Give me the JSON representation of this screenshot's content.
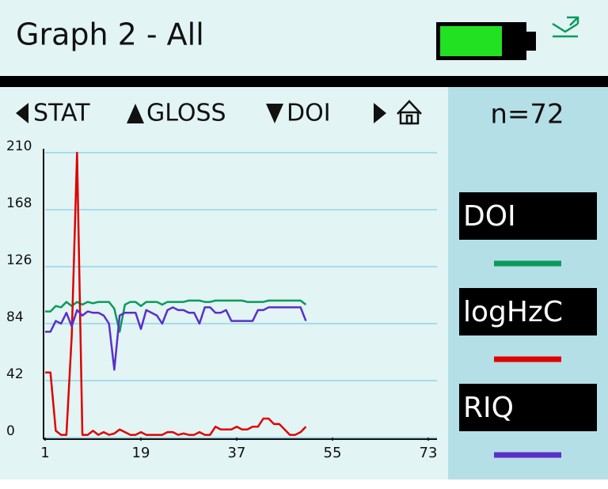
{
  "header": {
    "title": "Graph 2 - All"
  },
  "nav": {
    "left": "STAT",
    "up": "GLOSS",
    "down": "DOI"
  },
  "side": {
    "count": "n=72"
  },
  "chart_data": {
    "type": "line",
    "x": [
      1,
      2,
      3,
      4,
      5,
      6,
      7,
      8,
      9,
      10,
      11,
      12,
      13,
      14,
      15,
      16,
      17,
      18,
      19,
      20,
      21,
      22,
      23,
      24,
      25,
      26,
      27,
      28,
      29,
      30,
      31,
      32,
      33,
      34,
      35,
      36,
      37,
      38,
      39,
      40,
      41,
      42,
      43,
      44,
      45,
      46,
      47,
      48,
      49,
      50
    ],
    "xlim": [
      1,
      73
    ],
    "xticks": [
      1,
      19,
      37,
      55,
      73
    ],
    "ylim": [
      0,
      210
    ],
    "yticks": [
      0,
      42,
      84,
      126,
      168,
      210
    ],
    "grid": true,
    "series": [
      {
        "name": "DOI",
        "color": "#0a9a5a",
        "values": [
          93,
          93,
          97,
          96,
          100,
          97,
          100,
          98,
          100,
          99,
          100,
          100,
          100,
          95,
          78,
          98,
          100,
          100,
          97,
          100,
          100,
          100,
          98,
          100,
          100,
          100,
          100,
          101,
          101,
          101,
          100,
          100,
          101,
          101,
          101,
          101,
          101,
          101,
          100,
          100,
          100,
          100,
          101,
          101,
          101,
          101,
          101,
          101,
          101,
          98
        ]
      },
      {
        "name": "logHzC",
        "color": "#e00000",
        "values": [
          48,
          48,
          5,
          2,
          2,
          75,
          210,
          2,
          2,
          5,
          2,
          4,
          2,
          3,
          6,
          4,
          2,
          2,
          4,
          2,
          2,
          2,
          2,
          4,
          4,
          2,
          3,
          2,
          2,
          4,
          2,
          2,
          8,
          6,
          6,
          6,
          8,
          6,
          6,
          8,
          8,
          14,
          14,
          10,
          10,
          6,
          2,
          2,
          4,
          8
        ]
      },
      {
        "name": "RIQ",
        "color": "#5a30c8",
        "values": [
          78,
          78,
          86,
          84,
          92,
          82,
          94,
          90,
          93,
          92,
          92,
          90,
          84,
          50,
          90,
          92,
          92,
          92,
          80,
          94,
          92,
          90,
          84,
          94,
          96,
          94,
          94,
          92,
          92,
          84,
          96,
          96,
          92,
          92,
          94,
          86,
          86,
          86,
          86,
          86,
          94,
          94,
          96,
          96,
          96,
          96,
          96,
          96,
          96,
          86
        ]
      }
    ]
  }
}
